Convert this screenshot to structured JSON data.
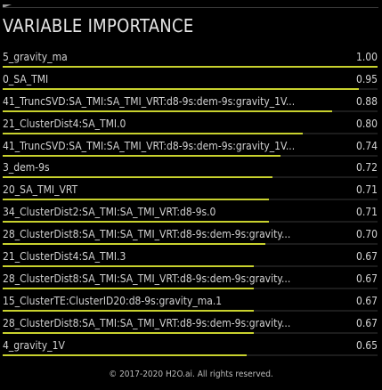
{
  "title": "VARIABLE IMPORTANCE",
  "footer": "© 2017-2020 H2O.ai. All rights reserved.",
  "colors": {
    "bar": "#c8d12e",
    "background": "#000000",
    "text": "#d2d2d2"
  },
  "chart_data": {
    "type": "bar",
    "orientation": "horizontal",
    "title": "VARIABLE IMPORTANCE",
    "xlim": [
      0,
      1
    ],
    "categories": [
      "5_gravity_ma",
      "0_SA_TMI",
      "41_TruncSVD:SA_TMI:SA_TMI_VRT:d8-9s:dem-9s:gravity_1V...",
      "21_ClusterDist4:SA_TMI.0",
      "41_TruncSVD:SA_TMI:SA_TMI_VRT:d8-9s:dem-9s:gravity_1V...",
      "3_dem-9s",
      "20_SA_TMI_VRT",
      "34_ClusterDist2:SA_TMI:SA_TMI_VRT:d8-9s.0",
      "28_ClusterDist8:SA_TMI:SA_TMI_VRT:d8-9s:dem-9s:gravity...",
      "21_ClusterDist4:SA_TMI.3",
      "28_ClusterDist8:SA_TMI:SA_TMI_VRT:d8-9s:dem-9s:gravity...",
      "15_ClusterTE:ClusterID20:d8-9s:gravity_ma.1",
      "28_ClusterDist8:SA_TMI:SA_TMI_VRT:d8-9s:dem-9s:gravity...",
      "4_gravity_1V"
    ],
    "values": [
      1.0,
      0.95,
      0.88,
      0.8,
      0.74,
      0.72,
      0.71,
      0.71,
      0.7,
      0.67,
      0.67,
      0.67,
      0.67,
      0.65
    ],
    "value_labels": [
      "1.00",
      "0.95",
      "0.88",
      "0.80",
      "0.74",
      "0.72",
      "0.71",
      "0.71",
      "0.70",
      "0.67",
      "0.67",
      "0.67",
      "0.67",
      "0.65"
    ]
  }
}
